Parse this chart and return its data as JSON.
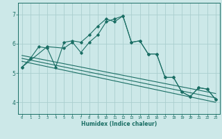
{
  "xlabel": "Humidex (Indice chaleur)",
  "bg_color": "#cce8e8",
  "line_color": "#1a6e64",
  "grid_color": "#aacece",
  "xlim": [
    -0.5,
    23.5
  ],
  "ylim": [
    3.6,
    7.4
  ],
  "yticks": [
    4,
    5,
    6,
    7
  ],
  "xticks": [
    0,
    1,
    2,
    3,
    4,
    5,
    6,
    7,
    8,
    9,
    10,
    11,
    12,
    13,
    14,
    15,
    16,
    17,
    18,
    19,
    20,
    21,
    22,
    23
  ],
  "series1_x": [
    0,
    1,
    2,
    3,
    4,
    5,
    6,
    7,
    8,
    9,
    10,
    11,
    12,
    13,
    14,
    15,
    16,
    17,
    18,
    19,
    20,
    21,
    22,
    23
  ],
  "series1_y": [
    5.2,
    5.5,
    5.9,
    5.85,
    5.2,
    6.05,
    6.1,
    6.05,
    6.3,
    6.6,
    6.85,
    6.75,
    6.95,
    6.05,
    6.1,
    5.65,
    5.65,
    4.85,
    4.85,
    4.35,
    4.2,
    4.5,
    4.45,
    4.1
  ],
  "series2_x": [
    0,
    3,
    5,
    6,
    7,
    8,
    9,
    10,
    11,
    12,
    13,
    14,
    15,
    16,
    17,
    18,
    19,
    20,
    21,
    22,
    23
  ],
  "series2_y": [
    5.2,
    5.9,
    5.85,
    6.05,
    5.7,
    6.05,
    6.3,
    6.75,
    6.85,
    6.95,
    6.05,
    6.1,
    5.65,
    5.65,
    4.85,
    4.85,
    4.35,
    4.2,
    4.5,
    4.45,
    4.1
  ],
  "trend1_x": [
    0,
    23
  ],
  "trend1_y": [
    5.6,
    4.3
  ],
  "trend2_x": [
    0,
    23
  ],
  "trend2_y": [
    5.5,
    4.15
  ],
  "trend3_x": [
    0,
    23
  ],
  "trend3_y": [
    5.4,
    4.0
  ]
}
